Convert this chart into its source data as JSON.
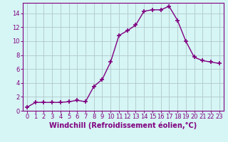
{
  "x": [
    0,
    1,
    2,
    3,
    4,
    5,
    6,
    7,
    8,
    9,
    10,
    11,
    12,
    13,
    14,
    15,
    16,
    17,
    18,
    19,
    20,
    21,
    22,
    23
  ],
  "y": [
    0.5,
    1.2,
    1.2,
    1.2,
    1.2,
    1.3,
    1.5,
    1.3,
    3.5,
    4.5,
    7.0,
    10.8,
    11.5,
    12.3,
    14.3,
    14.5,
    14.5,
    15.0,
    13.0,
    10.0,
    7.7,
    7.2,
    7.0,
    6.8
  ],
  "line_color": "#800080",
  "marker": "+",
  "marker_size": 4,
  "marker_linewidth": 1.2,
  "bg_color": "#d6f5f5",
  "grid_color": "#b0c8c8",
  "xlabel": "Windchill (Refroidissement éolien,°C)",
  "xlim": [
    -0.5,
    23.5
  ],
  "ylim": [
    0,
    15.5
  ],
  "yticks": [
    0,
    2,
    4,
    6,
    8,
    10,
    12,
    14
  ],
  "xticks": [
    0,
    1,
    2,
    3,
    4,
    5,
    6,
    7,
    8,
    9,
    10,
    11,
    12,
    13,
    14,
    15,
    16,
    17,
    18,
    19,
    20,
    21,
    22,
    23
  ],
  "tick_color": "#800080",
  "label_color": "#800080",
  "spine_color": "#800080",
  "xlabel_fontsize": 7.0,
  "tick_fontsize": 6.0,
  "linewidth": 1.0
}
